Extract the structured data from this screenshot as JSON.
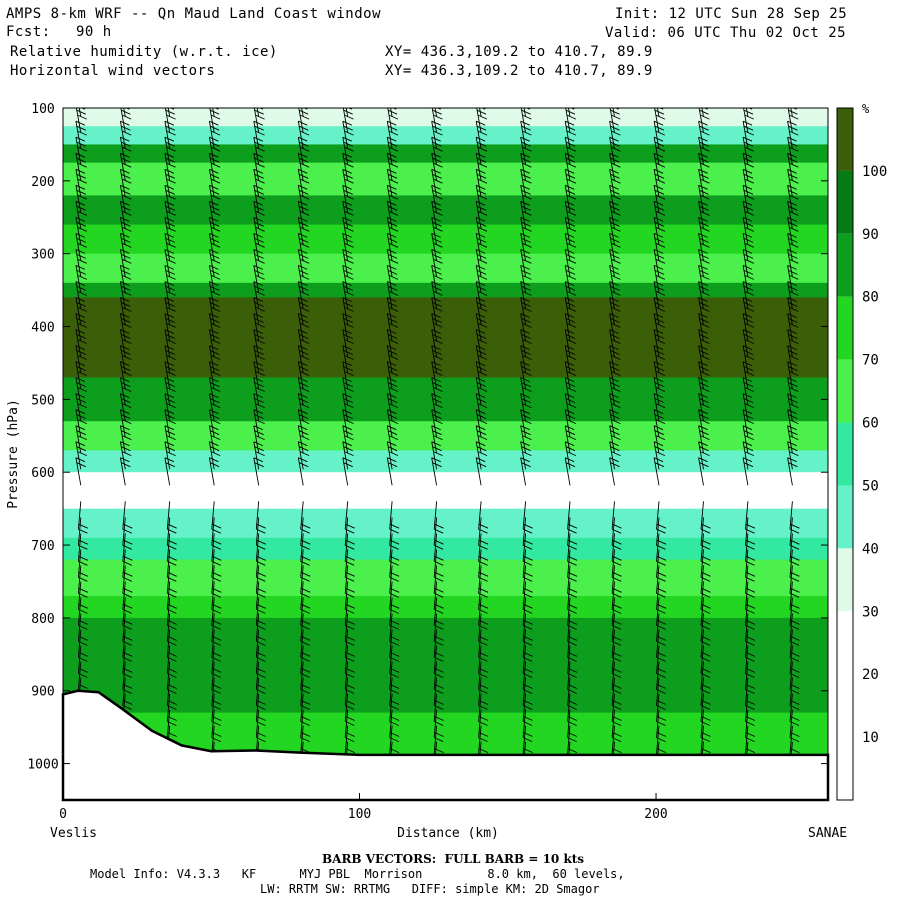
{
  "header": {
    "title": "AMPS 8-km WRF -- Qn Maud Land Coast window",
    "forecast_label": "Fcst:",
    "forecast_value": "90 h",
    "field1": "Relative humidity (w.r.t. ice)",
    "field2": "Horizontal wind vectors",
    "init": "Init: 12 UTC Sun 28 Sep 25",
    "valid": "Valid: 06 UTC Thu 02 Oct 25",
    "xy1": "XY= 436.3,109.2 to 410.7, 89.9",
    "xy2": "XY= 436.3,109.2 to 410.7, 89.9"
  },
  "chart_data": {
    "type": "heatmap",
    "title": "",
    "xlabel": "Distance (km)",
    "ylabel": "Pressure (hPa)",
    "x_range": [
      0,
      258
    ],
    "y_range": [
      100,
      1050
    ],
    "x_ticks": [
      0,
      100,
      200
    ],
    "y_ticks": [
      100,
      200,
      300,
      400,
      500,
      600,
      700,
      800,
      900,
      1000
    ],
    "x_end_labels": {
      "left": "Veslis",
      "right": "SANAE"
    },
    "colorbar": {
      "unit": "%",
      "levels": [
        10,
        20,
        30,
        40,
        50,
        60,
        70,
        80,
        90,
        100
      ],
      "colors": [
        "#ffffff",
        "#ffffff",
        "#ffffff",
        "#e0fae8",
        "#66f2c8",
        "#33e8a0",
        "#4cf04c",
        "#22d622",
        "#0c9e1c",
        "#067a14",
        "#3b5e08"
      ]
    },
    "rh_field": [
      {
        "p_top": 100,
        "p_bot": 125,
        "rh": 35
      },
      {
        "p_top": 125,
        "p_bot": 150,
        "rh": 45
      },
      {
        "p_top": 150,
        "p_bot": 175,
        "rh": 85
      },
      {
        "p_top": 175,
        "p_bot": 220,
        "rh": 65
      },
      {
        "p_top": 220,
        "p_bot": 260,
        "rh": 85
      },
      {
        "p_top": 260,
        "p_bot": 300,
        "rh": 70
      },
      {
        "p_top": 300,
        "p_bot": 340,
        "rh": 65
      },
      {
        "p_top": 340,
        "p_bot": 360,
        "rh": 85
      },
      {
        "p_top": 360,
        "p_bot": 470,
        "rh": 100
      },
      {
        "p_top": 470,
        "p_bot": 530,
        "rh": 85
      },
      {
        "p_top": 530,
        "p_bot": 570,
        "rh": 60
      },
      {
        "p_top": 570,
        "p_bot": 600,
        "rh": 45
      },
      {
        "p_top": 600,
        "p_bot": 650,
        "rh": 20
      },
      {
        "p_top": 650,
        "p_bot": 690,
        "rh": 45
      },
      {
        "p_top": 690,
        "p_bot": 720,
        "rh": 55
      },
      {
        "p_top": 720,
        "p_bot": 770,
        "rh": 65
      },
      {
        "p_top": 770,
        "p_bot": 800,
        "rh": 75
      },
      {
        "p_top": 800,
        "p_bot": 930,
        "rh": 85
      },
      {
        "p_top": 930,
        "p_bot": 990,
        "rh": 75
      }
    ],
    "terrain": [
      {
        "x": 0,
        "p": 905
      },
      {
        "x": 5,
        "p": 900
      },
      {
        "x": 12,
        "p": 902
      },
      {
        "x": 20,
        "p": 925
      },
      {
        "x": 30,
        "p": 955
      },
      {
        "x": 40,
        "p": 975
      },
      {
        "x": 50,
        "p": 983
      },
      {
        "x": 65,
        "p": 982
      },
      {
        "x": 80,
        "p": 985
      },
      {
        "x": 100,
        "p": 988
      },
      {
        "x": 150,
        "p": 988
      },
      {
        "x": 200,
        "p": 988
      },
      {
        "x": 258,
        "p": 988
      }
    ],
    "grid": false
  },
  "footer": {
    "barb_note": "BARB VECTORS:  FULL BARB = 10 kts",
    "model_line1": "Model Info: V4.3.3   KF      MYJ PBL  Morrison         8.0 km,  60 levels,",
    "model_line2": "LW: RRTM SW: RRTMG   DIFF: simple KM: 2D Smagor"
  }
}
